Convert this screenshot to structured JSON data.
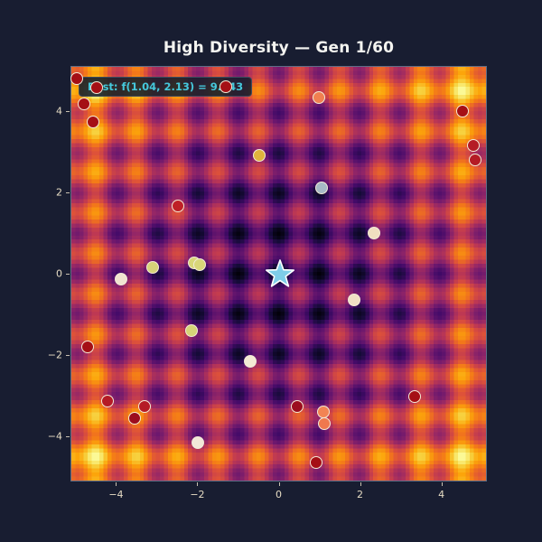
{
  "title": "High Diversity — Gen 1/60",
  "annotation": {
    "text": "Best: f(1.04, 2.13) = 9.043"
  },
  "colors": {
    "figure_background": "#181d31",
    "title_text": "#f4f4f0",
    "tick_label": "#e6dcc4",
    "annotation_text": "#45c8dc",
    "annotation_background": "#121c2c",
    "point_edge": "#f2ead6",
    "star_fill": "#7ecde8",
    "star_edge": "#ffffff"
  },
  "chart_data": {
    "type": "scatter",
    "title": "High Diversity — Gen 1/60",
    "xlabel": "",
    "ylabel": "",
    "xlim": [
      -5.12,
      5.12
    ],
    "ylim": [
      -5.12,
      5.12
    ],
    "x_tick_values": [
      -4,
      -2,
      0,
      2,
      4
    ],
    "x_tick_labels": [
      "−4",
      "−2",
      "0",
      "2",
      "4"
    ],
    "y_tick_values": [
      4,
      2,
      0,
      -2,
      -4
    ],
    "y_tick_labels": [
      "4",
      "2",
      "0",
      "−2",
      "−4"
    ],
    "grid": false,
    "legend": false,
    "background_heatmap": {
      "function": "rastrigin",
      "formula": "f(x,y) = 20 + x^2 - 10cos(2πx) + y^2 - 10cos(2πy)",
      "colormap": "inferno",
      "vmin": 0,
      "vmax": 81,
      "resolution": 103
    },
    "best_point": {
      "x": 1.04,
      "y": 2.13,
      "f": 9.043,
      "color": "#a7bac6"
    },
    "global_optimum_star": {
      "x": 0,
      "y": 0
    },
    "population": [
      {
        "x": -4.98,
        "y": 4.82,
        "color": "#a50f15"
      },
      {
        "x": -4.49,
        "y": 4.6,
        "color": "#a50f15"
      },
      {
        "x": -1.33,
        "y": 4.62,
        "color": "#a50f15"
      },
      {
        "x": -4.82,
        "y": 4.2,
        "color": "#a50f15"
      },
      {
        "x": -4.58,
        "y": 3.76,
        "color": "#a50f15"
      },
      {
        "x": -0.49,
        "y": 2.93,
        "color": "#e0b33c"
      },
      {
        "x": -2.51,
        "y": 1.69,
        "color": "#bf2026"
      },
      {
        "x": -3.13,
        "y": 0.18,
        "color": "#d6d478"
      },
      {
        "x": -2.11,
        "y": 0.29,
        "color": "#d8d678"
      },
      {
        "x": -1.96,
        "y": 0.24,
        "color": "#d8d678"
      },
      {
        "x": -3.89,
        "y": -0.11,
        "color": "#f0e4d0"
      },
      {
        "x": 0.96,
        "y": 4.36,
        "color": "#f08050"
      },
      {
        "x": 4.49,
        "y": 4.04,
        "color": "#a50f15"
      },
      {
        "x": 4.76,
        "y": 3.18,
        "color": "#b51b25"
      },
      {
        "x": 4.8,
        "y": 2.82,
        "color": "#b51b25"
      },
      {
        "x": 1.04,
        "y": 2.13,
        "color": "#a7bac6"
      },
      {
        "x": 2.33,
        "y": 1.02,
        "color": "#f0dfc0"
      },
      {
        "x": -2.16,
        "y": -1.38,
        "color": "#d6d478"
      },
      {
        "x": -4.71,
        "y": -1.78,
        "color": "#a50f15"
      },
      {
        "x": -0.73,
        "y": -2.13,
        "color": "#f4ead4"
      },
      {
        "x": -4.24,
        "y": -3.11,
        "color": "#b51b25"
      },
      {
        "x": -3.31,
        "y": -3.24,
        "color": "#b51b25"
      },
      {
        "x": -3.56,
        "y": -3.53,
        "color": "#9c0d1e"
      },
      {
        "x": -2.02,
        "y": -4.13,
        "color": "#f2e8d8"
      },
      {
        "x": 1.84,
        "y": -0.62,
        "color": "#f0e0c4"
      },
      {
        "x": 3.33,
        "y": -3.0,
        "color": "#a50f15"
      },
      {
        "x": 0.44,
        "y": -3.24,
        "color": "#9c0d1e"
      },
      {
        "x": 1.07,
        "y": -3.38,
        "color": "#f28454"
      },
      {
        "x": 1.11,
        "y": -3.67,
        "color": "#f0784e"
      },
      {
        "x": 0.91,
        "y": -4.64,
        "color": "#a50f15"
      }
    ]
  }
}
